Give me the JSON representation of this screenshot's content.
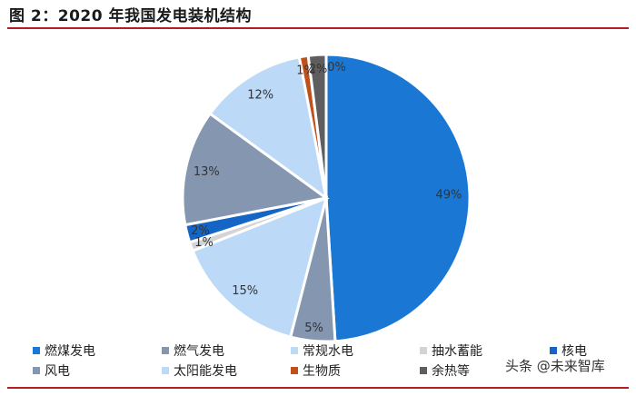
{
  "title": "图 2：2020 年我国发电装机结构",
  "watermark": "头条 @未来智库",
  "chart_data": {
    "type": "pie",
    "start_angle_deg": 0,
    "direction": "clockwise",
    "slice_border_color": "#ffffff",
    "legend_position": "bottom",
    "slices": [
      {
        "name": "燃煤发电",
        "value": 49,
        "label": "49%",
        "color": "#1a78d4"
      },
      {
        "name": "燃气发电",
        "value": 5,
        "label": "5%",
        "color": "#8597b0"
      },
      {
        "name": "常规水电",
        "value": 15,
        "label": "15%",
        "color": "#bcd9f7"
      },
      {
        "name": "抽水蓄能",
        "value": 1,
        "label": "1%",
        "color": "#d4d4d4"
      },
      {
        "name": "核电",
        "value": 2,
        "label": "2%",
        "color": "#1565c7"
      },
      {
        "name": "风电",
        "value": 13,
        "label": "13%",
        "color": "#8597b0"
      },
      {
        "name": "太阳能发电",
        "value": 12,
        "label": "12%",
        "color": "#bcd9f7"
      },
      {
        "name": "生物质",
        "value": 1,
        "label": "1%",
        "color": "#c0501b"
      },
      {
        "name": "余热等",
        "value": 2,
        "label": "2%",
        "color": "#5e5e5e"
      },
      {
        "name": "",
        "value": 0,
        "label": "0%",
        "color": "#5e5e5e"
      }
    ]
  }
}
